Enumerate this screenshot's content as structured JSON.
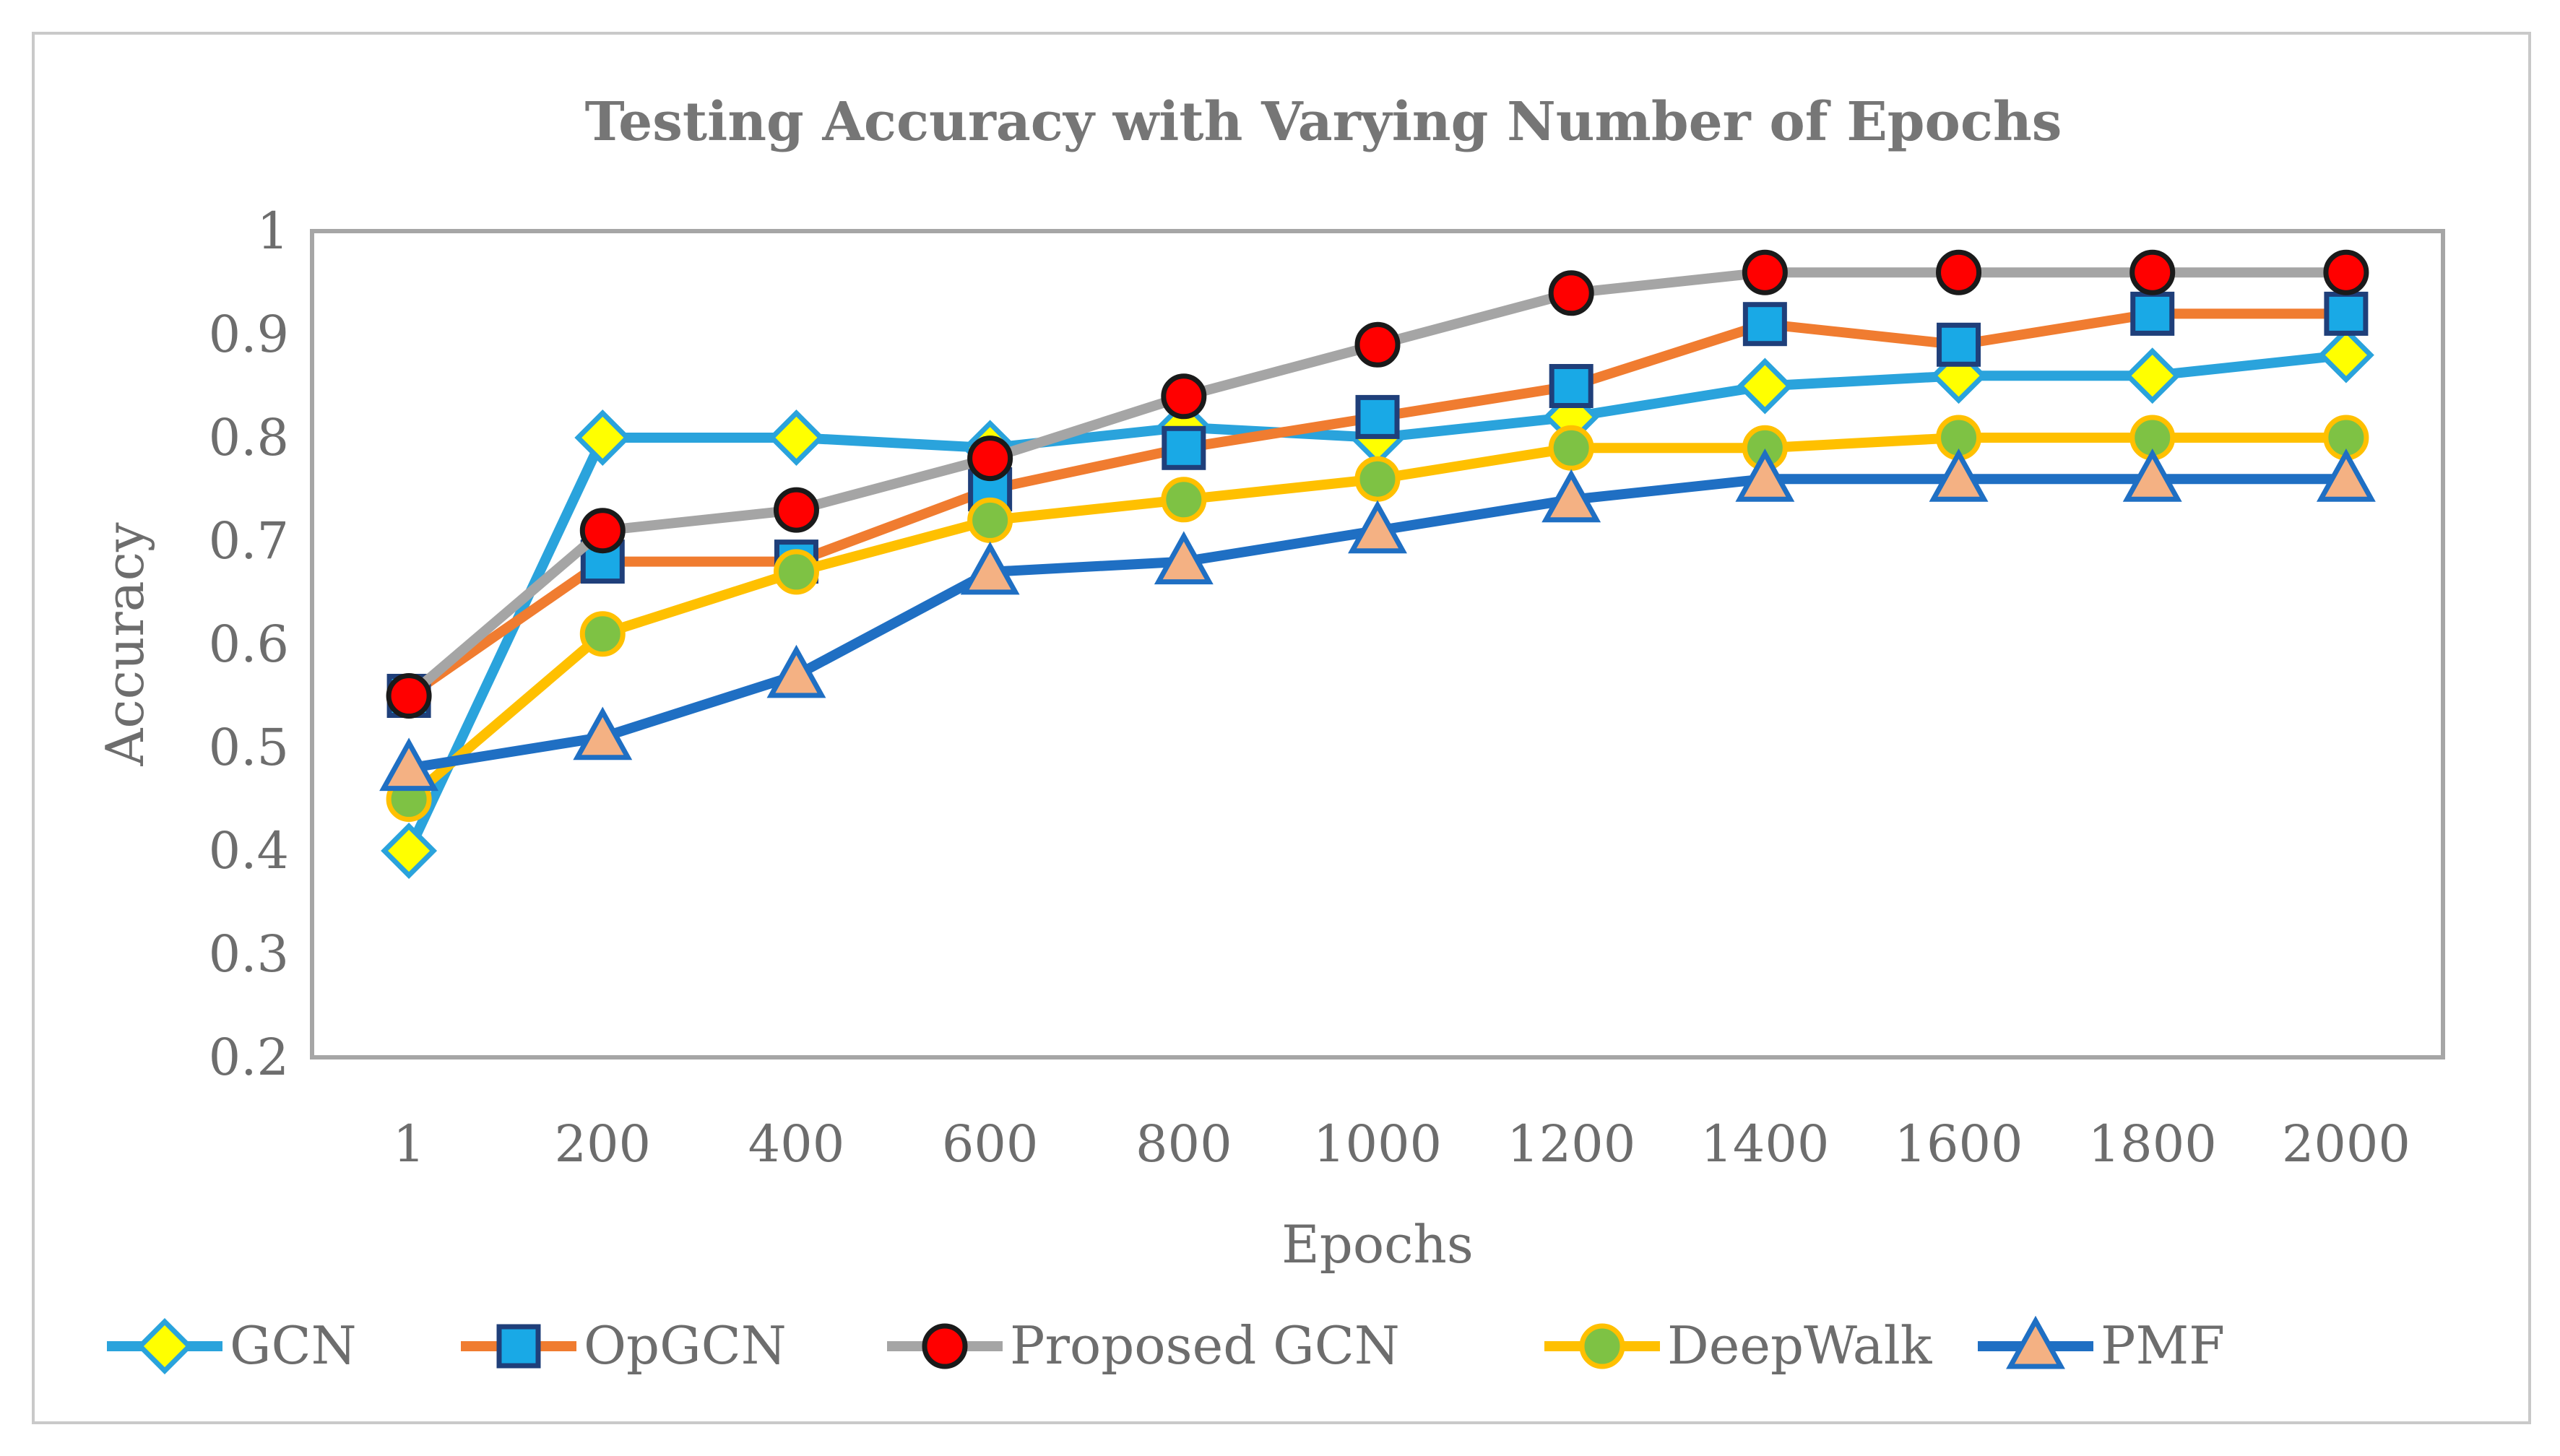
{
  "chart_data": {
    "type": "line",
    "title": "Testing Accuracy with Varying Number of Epochs",
    "xlabel": "Epochs",
    "ylabel": "Accuracy",
    "ylim": [
      0.2,
      1
    ],
    "yticks": [
      "0.2",
      "0.3",
      "0.4",
      "0.5",
      "0.6",
      "0.7",
      "0.8",
      "0.9",
      "1"
    ],
    "categories": [
      "1",
      "200",
      "400",
      "600",
      "800",
      "1000",
      "1200",
      "1400",
      "1600",
      "1800",
      "2000"
    ],
    "legend_position": "bottom",
    "series": [
      {
        "name": "GCN",
        "line_color": "#2aa3dc",
        "marker": "diamond",
        "marker_fill": "#ffff00",
        "marker_stroke": "#2aa3dc",
        "values": [
          0.4,
          0.8,
          0.8,
          0.79,
          0.81,
          0.8,
          0.82,
          0.85,
          0.86,
          0.86,
          0.88
        ]
      },
      {
        "name": "OpGCN",
        "line_color": "#f07c30",
        "marker": "square",
        "marker_fill": "#19a9e6",
        "marker_stroke": "#1f3f7a",
        "values": [
          0.55,
          0.68,
          0.68,
          0.75,
          0.79,
          0.82,
          0.85,
          0.91,
          0.89,
          0.92,
          0.92
        ]
      },
      {
        "name": "Proposed GCN",
        "line_color": "#a5a5a5",
        "marker": "circle",
        "marker_fill": "#ff0000",
        "marker_stroke": "#1a1a1a",
        "values": [
          0.55,
          0.71,
          0.73,
          0.78,
          0.84,
          0.89,
          0.94,
          0.96,
          0.96,
          0.96,
          0.96
        ]
      },
      {
        "name": "DeepWalk",
        "line_color": "#ffc000",
        "marker": "circle",
        "marker_fill": "#7ec244",
        "marker_stroke": "#ffc000",
        "values": [
          0.45,
          0.61,
          0.67,
          0.72,
          0.74,
          0.76,
          0.79,
          0.79,
          0.8,
          0.8,
          0.8
        ]
      },
      {
        "name": "PMF",
        "line_color": "#1f6fc3",
        "marker": "triangle",
        "marker_fill": "#f4b183",
        "marker_stroke": "#1f6fc3",
        "values": [
          0.48,
          0.51,
          0.57,
          0.67,
          0.68,
          0.71,
          0.74,
          0.76,
          0.76,
          0.76,
          0.76
        ]
      }
    ]
  }
}
